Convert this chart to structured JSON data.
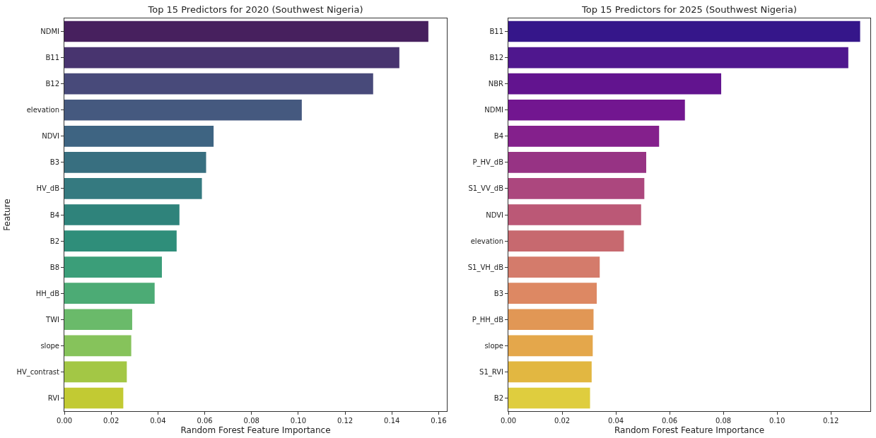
{
  "chart_data": [
    {
      "type": "bar",
      "orientation": "horizontal",
      "title": "Top 15 Predictors for 2020 (Southwest Nigeria)",
      "xlabel": "Random Forest Feature Importance",
      "ylabel": "Feature",
      "categories": [
        "NDMI",
        "B11",
        "B12",
        "elevation",
        "NDVI",
        "B3",
        "HV_dB",
        "B4",
        "B2",
        "B8",
        "HH_dB",
        "TWI",
        "slope",
        "HV_contrast",
        "RVI"
      ],
      "values": [
        0.1556,
        0.1432,
        0.132,
        0.1015,
        0.0638,
        0.0606,
        0.0588,
        0.0492,
        0.048,
        0.0417,
        0.0386,
        0.029,
        0.0286,
        0.0267,
        0.0252
      ],
      "colors": [
        "#47205e",
        "#48346f",
        "#484a7a",
        "#45597f",
        "#3e6482",
        "#386f80",
        "#357a80",
        "#2f837b",
        "#2f8e7a",
        "#3b9e79",
        "#4cab75",
        "#6aba6a",
        "#86c35b",
        "#a3c745",
        "#c2ca33"
      ],
      "xlim": [
        0,
        0.1635
      ],
      "xticks": [
        {
          "value": 0,
          "label": "0.00"
        },
        {
          "value": 0.02,
          "label": "0.02"
        },
        {
          "value": 0.04,
          "label": "0.04"
        },
        {
          "value": 0.06,
          "label": "0.06"
        },
        {
          "value": 0.08,
          "label": "0.08"
        },
        {
          "value": 0.1,
          "label": "0.10"
        },
        {
          "value": 0.12,
          "label": "0.12"
        },
        {
          "value": 0.14,
          "label": "0.14"
        },
        {
          "value": 0.16,
          "label": "0.16"
        }
      ]
    },
    {
      "type": "bar",
      "orientation": "horizontal",
      "title": "Top 15 Predictors for 2025 (Southwest Nigeria)",
      "xlabel": "Random Forest Feature Importance",
      "categories": [
        "B11",
        "B12",
        "NBR",
        "NDMI",
        "B4",
        "P_HV_dB",
        "S1_VV_dB",
        "NDVI",
        "elevation",
        "S1_VH_dB",
        "B3",
        "P_HH_dB",
        "slope",
        "S1_RVI",
        "B2"
      ],
      "values": [
        0.1309,
        0.1265,
        0.0792,
        0.0657,
        0.0561,
        0.0513,
        0.0506,
        0.0494,
        0.043,
        0.034,
        0.0329,
        0.0317,
        0.0314,
        0.031,
        0.0304
      ],
      "colors": [
        "#35168a",
        "#4f178e",
        "#62148f",
        "#721690",
        "#84208c",
        "#973384",
        "#ac477e",
        "#bb5876",
        "#c7696f",
        "#d47b6b",
        "#dd8863",
        "#e19755",
        "#e4a74b",
        "#e2b741",
        "#dfcd3e"
      ],
      "xlim": [
        0,
        0.1347
      ],
      "xticks": [
        {
          "value": 0,
          "label": "0.00"
        },
        {
          "value": 0.02,
          "label": "0.02"
        },
        {
          "value": 0.04,
          "label": "0.04"
        },
        {
          "value": 0.06,
          "label": "0.06"
        },
        {
          "value": 0.08,
          "label": "0.08"
        },
        {
          "value": 0.1,
          "label": "0.10"
        },
        {
          "value": 0.12,
          "label": "0.12"
        }
      ]
    }
  ]
}
